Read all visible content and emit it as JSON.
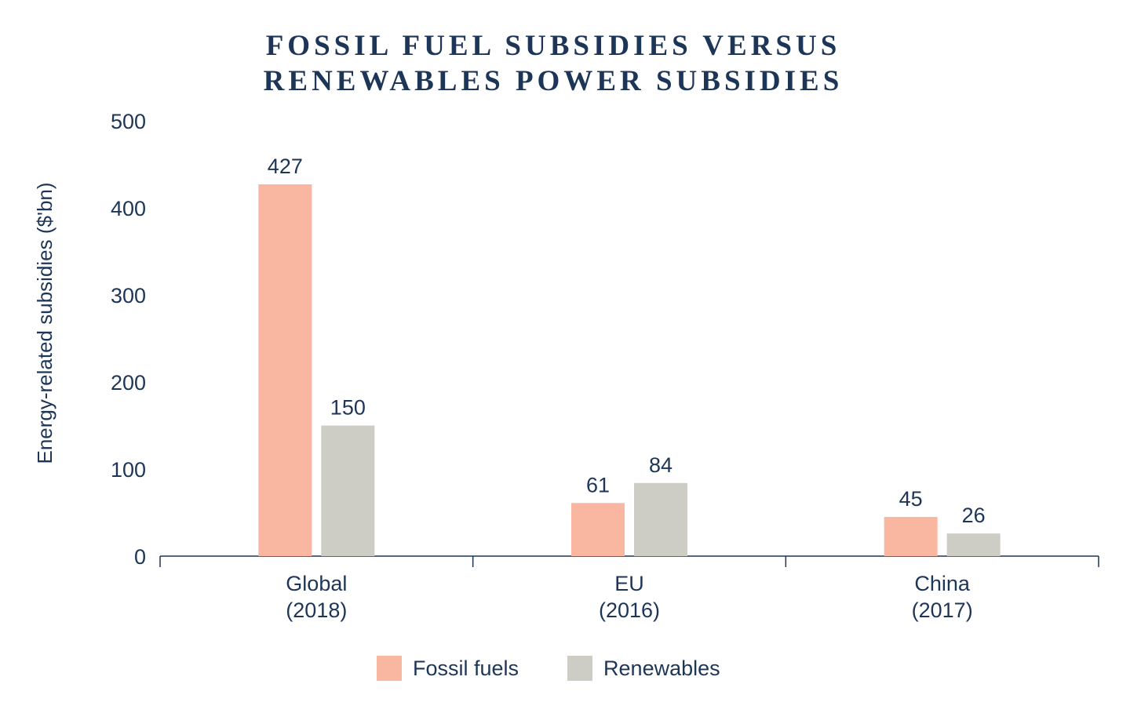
{
  "chart_data": {
    "type": "bar",
    "title": [
      "FOSSIL FUEL SUBSIDIES VERSUS",
      "RENEWABLES POWER SUBSIDIES"
    ],
    "ylabel": "Energy-related subsidies ($'bn)",
    "xlabel": "",
    "ylim": [
      0,
      500
    ],
    "yticks": [
      0,
      100,
      200,
      300,
      400,
      500
    ],
    "categories": [
      [
        "Global",
        "(2018)"
      ],
      [
        "EU",
        "(2016)"
      ],
      [
        "China",
        "(2017)"
      ]
    ],
    "series": [
      {
        "name": "Fossil fuels",
        "values": [
          427,
          61,
          45
        ],
        "color": "#f9b6a0"
      },
      {
        "name": "Renewables",
        "values": [
          150,
          84,
          26
        ],
        "color": "#cdcdc5"
      }
    ],
    "grid": false,
    "legend_position": "bottom-center"
  },
  "colors": {
    "text": "#1d3557",
    "axis": "#1d3557"
  }
}
